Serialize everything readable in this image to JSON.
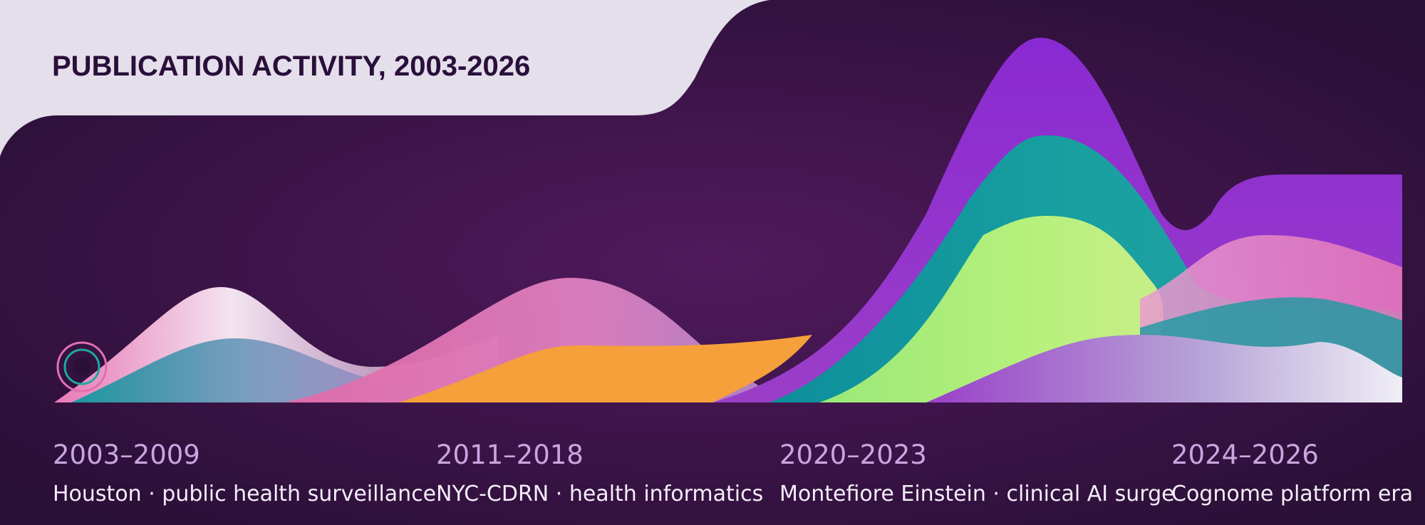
{
  "title": "PUBLICATION ACTIVITY, 2003-2026",
  "periods": [
    {
      "years": "2003–2009",
      "description": "Houston · public health surveillance"
    },
    {
      "years": "2011–2018",
      "description": "NYC-CDRN · health informatics"
    },
    {
      "years": "2020–2023",
      "description": "Montefiore Einstein · clinical AI surge"
    },
    {
      "years": "2024–2026",
      "description": "Cognome platform era"
    }
  ]
}
